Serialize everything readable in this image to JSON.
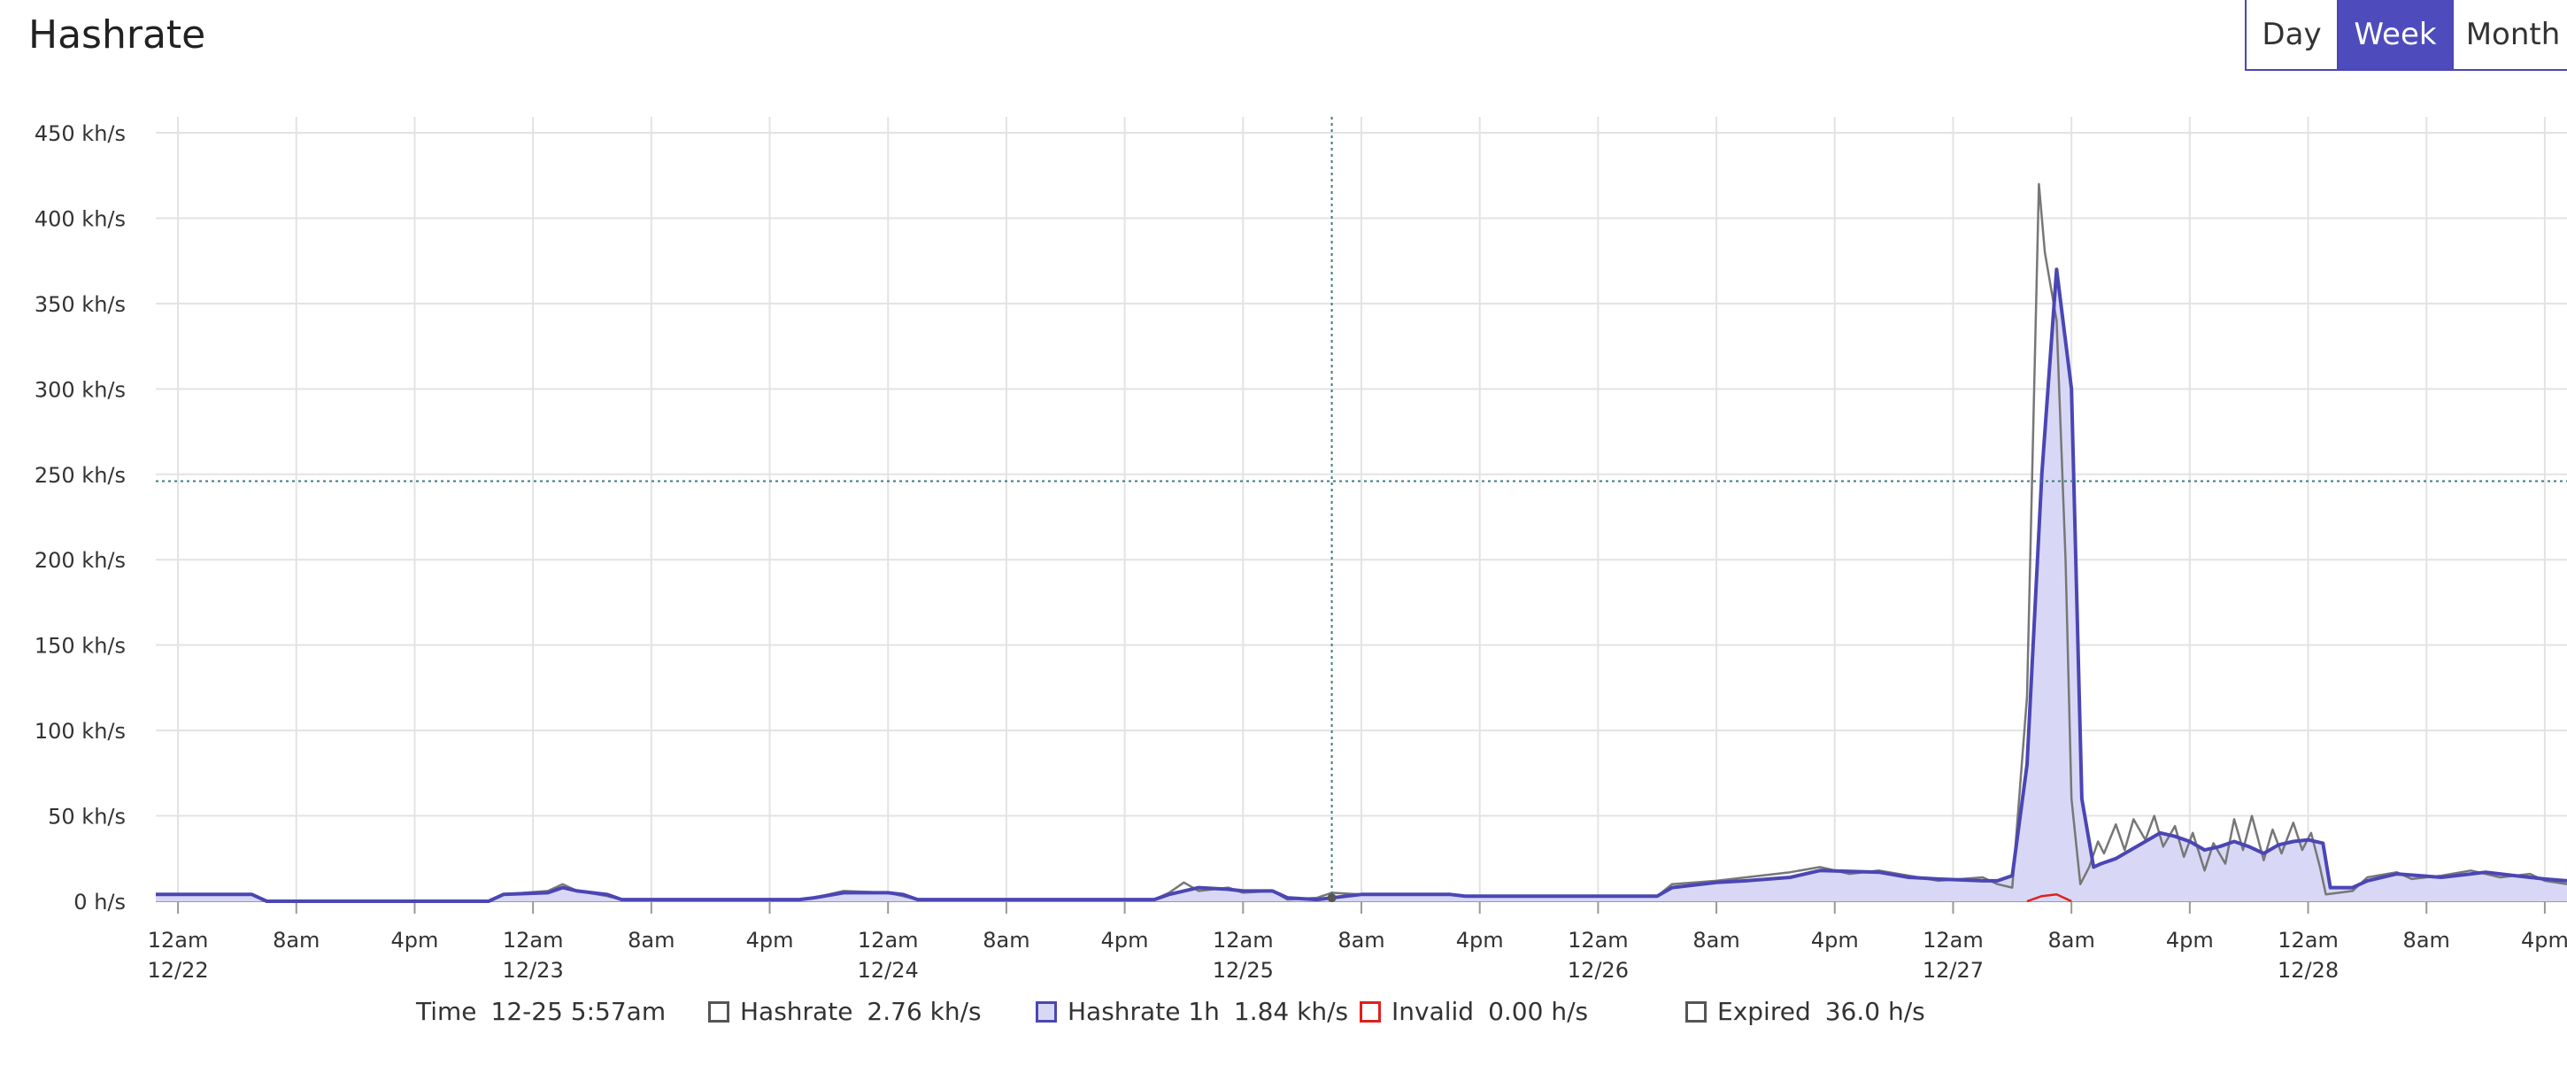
{
  "header": {
    "title": "Hashrate"
  },
  "range_buttons": [
    {
      "label": "Day",
      "active": false
    },
    {
      "label": "Week",
      "active": true
    },
    {
      "label": "Month",
      "active": false
    }
  ],
  "legend": {
    "time_label": "Time",
    "time_value": "12-25 5:57am",
    "items": [
      {
        "label": "Hashrate",
        "value": "2.76 kh/s",
        "swatch_fill": "#ffffff",
        "swatch_border": "#555555"
      },
      {
        "label": "Hashrate 1h",
        "value": "1.84 kh/s",
        "swatch_fill": "#d8d8f6",
        "swatch_border": "#4b46b4"
      },
      {
        "label": "Invalid",
        "value": "0.00 h/s",
        "swatch_fill": "#ffffff",
        "swatch_border": "#e0201b"
      },
      {
        "label": "Expired",
        "value": "36.0 h/s",
        "swatch_fill": "#ffffff",
        "swatch_border": "#555555"
      }
    ]
  },
  "chart_data": {
    "type": "area",
    "x_unit": "hours since 12/22 12am",
    "xlim": [
      -1.5,
      161.5
    ],
    "ylim": [
      0,
      450
    ],
    "y_ticks": [
      {
        "v": 0,
        "label": "0  h/s"
      },
      {
        "v": 50,
        "label": "50 kh/s"
      },
      {
        "v": 100,
        "label": "100 kh/s"
      },
      {
        "v": 150,
        "label": "150 kh/s"
      },
      {
        "v": 200,
        "label": "200 kh/s"
      },
      {
        "v": 250,
        "label": "250 kh/s"
      },
      {
        "v": 300,
        "label": "300 kh/s"
      },
      {
        "v": 350,
        "label": "350 kh/s"
      },
      {
        "v": 400,
        "label": "400 kh/s"
      },
      {
        "v": 450,
        "label": "450 kh/s"
      }
    ],
    "x_ticks": [
      {
        "h": 0,
        "label": "12am",
        "date": "12/22"
      },
      {
        "h": 8,
        "label": "8am",
        "date": ""
      },
      {
        "h": 16,
        "label": "4pm",
        "date": ""
      },
      {
        "h": 24,
        "label": "12am",
        "date": "12/23"
      },
      {
        "h": 32,
        "label": "8am",
        "date": ""
      },
      {
        "h": 40,
        "label": "4pm",
        "date": ""
      },
      {
        "h": 48,
        "label": "12am",
        "date": "12/24"
      },
      {
        "h": 56,
        "label": "8am",
        "date": ""
      },
      {
        "h": 64,
        "label": "4pm",
        "date": ""
      },
      {
        "h": 72,
        "label": "12am",
        "date": "12/25"
      },
      {
        "h": 80,
        "label": "8am",
        "date": ""
      },
      {
        "h": 88,
        "label": "4pm",
        "date": ""
      },
      {
        "h": 96,
        "label": "12am",
        "date": "12/26"
      },
      {
        "h": 104,
        "label": "8am",
        "date": ""
      },
      {
        "h": 112,
        "label": "4pm",
        "date": ""
      },
      {
        "h": 120,
        "label": "12am",
        "date": "12/27"
      },
      {
        "h": 128,
        "label": "8am",
        "date": ""
      },
      {
        "h": 136,
        "label": "4pm",
        "date": ""
      },
      {
        "h": 144,
        "label": "12am",
        "date": "12/28"
      },
      {
        "h": 152,
        "label": "8am",
        "date": ""
      },
      {
        "h": 160,
        "label": "4pm",
        "date": ""
      }
    ],
    "crosshair": {
      "x": 78,
      "y": 246
    },
    "series": [
      {
        "name": "Hashrate 1h",
        "color": "#4b46b4",
        "fill": "#d8d8f6",
        "points": [
          [
            -1.5,
            4
          ],
          [
            5,
            4
          ],
          [
            6,
            0
          ],
          [
            21,
            0
          ],
          [
            22,
            4
          ],
          [
            25,
            5
          ],
          [
            26,
            8
          ],
          [
            27,
            6
          ],
          [
            29,
            4
          ],
          [
            30,
            1
          ],
          [
            42,
            1
          ],
          [
            43,
            2
          ],
          [
            45,
            5
          ],
          [
            48,
            5
          ],
          [
            49,
            4
          ],
          [
            50,
            1
          ],
          [
            66,
            1
          ],
          [
            67,
            4
          ],
          [
            69,
            8
          ],
          [
            71,
            7
          ],
          [
            72,
            6
          ],
          [
            74,
            6
          ],
          [
            75,
            2
          ],
          [
            77,
            1
          ],
          [
            78,
            2
          ],
          [
            80,
            4
          ],
          [
            86,
            4
          ],
          [
            87,
            3
          ],
          [
            96,
            3
          ],
          [
            100,
            3
          ],
          [
            101,
            8
          ],
          [
            104,
            11
          ],
          [
            106,
            12
          ],
          [
            109,
            14
          ],
          [
            111,
            18
          ],
          [
            115,
            17
          ],
          [
            117,
            14
          ],
          [
            119,
            13
          ],
          [
            122,
            12
          ],
          [
            123,
            12
          ],
          [
            124,
            15
          ],
          [
            125,
            80
          ],
          [
            126,
            250
          ],
          [
            127,
            370
          ],
          [
            128,
            300
          ],
          [
            128.7,
            60
          ],
          [
            129.5,
            20
          ],
          [
            130,
            22
          ],
          [
            131,
            25
          ],
          [
            132,
            30
          ],
          [
            133,
            35
          ],
          [
            134,
            40
          ],
          [
            135,
            38
          ],
          [
            136,
            35
          ],
          [
            137,
            30
          ],
          [
            138,
            32
          ],
          [
            139,
            35
          ],
          [
            140,
            32
          ],
          [
            141,
            28
          ],
          [
            142,
            33
          ],
          [
            143,
            35
          ],
          [
            144,
            36
          ],
          [
            145,
            34
          ],
          [
            145.5,
            8
          ],
          [
            147,
            8
          ],
          [
            148,
            12
          ],
          [
            150,
            16
          ],
          [
            153,
            14
          ],
          [
            156,
            17
          ],
          [
            158,
            15
          ],
          [
            160,
            13
          ],
          [
            161.5,
            12
          ]
        ]
      },
      {
        "name": "Hashrate",
        "color": "#777777",
        "points": [
          [
            -1.5,
            4
          ],
          [
            5,
            4
          ],
          [
            6,
            0
          ],
          [
            21,
            0
          ],
          [
            22,
            4
          ],
          [
            25,
            6
          ],
          [
            26,
            10
          ],
          [
            27,
            6
          ],
          [
            29,
            3
          ],
          [
            30,
            1
          ],
          [
            42,
            1
          ],
          [
            43,
            2
          ],
          [
            45,
            6
          ],
          [
            48,
            5
          ],
          [
            49,
            3
          ],
          [
            50,
            1
          ],
          [
            66,
            1
          ],
          [
            67,
            5
          ],
          [
            68,
            11
          ],
          [
            69,
            6
          ],
          [
            71,
            8
          ],
          [
            72,
            5
          ],
          [
            74,
            6
          ],
          [
            75,
            1
          ],
          [
            77,
            2
          ],
          [
            78,
            5
          ],
          [
            80,
            4
          ],
          [
            86,
            4
          ],
          [
            87,
            3
          ],
          [
            96,
            3
          ],
          [
            100,
            3
          ],
          [
            101,
            10
          ],
          [
            104,
            12
          ],
          [
            106,
            14
          ],
          [
            109,
            17
          ],
          [
            111,
            20
          ],
          [
            113,
            16
          ],
          [
            115,
            18
          ],
          [
            117,
            15
          ],
          [
            119,
            12
          ],
          [
            122,
            14
          ],
          [
            123,
            10
          ],
          [
            124,
            8
          ],
          [
            125,
            120
          ],
          [
            125.8,
            420
          ],
          [
            126.2,
            380
          ],
          [
            127,
            340
          ],
          [
            127.6,
            200
          ],
          [
            128,
            60
          ],
          [
            128.6,
            10
          ],
          [
            129.2,
            20
          ],
          [
            129.8,
            35
          ],
          [
            130.2,
            28
          ],
          [
            131,
            45
          ],
          [
            131.6,
            30
          ],
          [
            132.2,
            48
          ],
          [
            133,
            36
          ],
          [
            133.6,
            50
          ],
          [
            134.2,
            32
          ],
          [
            135,
            44
          ],
          [
            135.6,
            26
          ],
          [
            136.2,
            40
          ],
          [
            137,
            18
          ],
          [
            137.6,
            34
          ],
          [
            138.4,
            22
          ],
          [
            139,
            48
          ],
          [
            139.6,
            30
          ],
          [
            140.2,
            50
          ],
          [
            141,
            24
          ],
          [
            141.6,
            42
          ],
          [
            142.2,
            28
          ],
          [
            143,
            46
          ],
          [
            143.6,
            30
          ],
          [
            144.2,
            40
          ],
          [
            144.8,
            20
          ],
          [
            145.2,
            4
          ],
          [
            147,
            6
          ],
          [
            148,
            14
          ],
          [
            150,
            17
          ],
          [
            151,
            13
          ],
          [
            153,
            15
          ],
          [
            155,
            18
          ],
          [
            157,
            14
          ],
          [
            159,
            16
          ],
          [
            160,
            12
          ],
          [
            161.5,
            10
          ]
        ]
      },
      {
        "name": "Invalid",
        "color": "#e0201b",
        "points": [
          [
            125,
            0
          ],
          [
            126,
            3
          ],
          [
            127,
            4
          ],
          [
            128,
            0
          ]
        ]
      }
    ]
  }
}
